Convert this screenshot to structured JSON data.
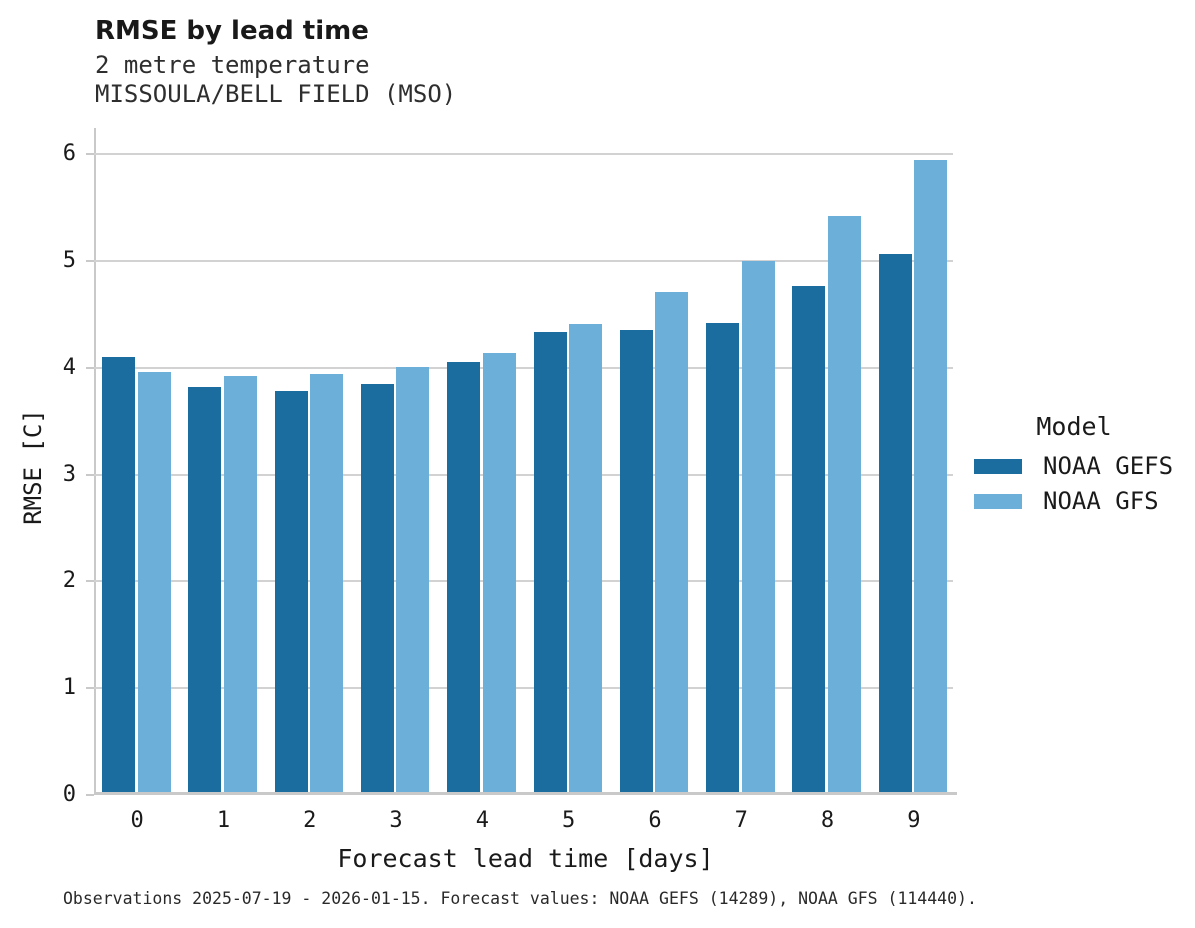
{
  "chart_data": {
    "type": "bar",
    "title": "RMSE by lead time",
    "subtitle": [
      "2 metre temperature",
      "MISSOULA/BELL FIELD (MSO)"
    ],
    "categories": [
      "0",
      "1",
      "2",
      "3",
      "4",
      "5",
      "6",
      "7",
      "8",
      "9"
    ],
    "series": [
      {
        "name": "NOAA GEFS",
        "color": "#1a6d9e",
        "values": [
          4.1,
          3.82,
          3.78,
          3.85,
          4.05,
          4.34,
          4.35,
          4.42,
          4.77,
          5.07
        ]
      },
      {
        "name": "NOAA GFS",
        "color": "#6cb0da",
        "values": [
          3.96,
          3.92,
          3.94,
          4.01,
          4.14,
          4.41,
          4.71,
          5.0,
          5.42,
          5.95
        ]
      }
    ],
    "xlabel": "Forecast lead time [days]",
    "ylabel": "RMSE [C]",
    "ylim": [
      0,
      6
    ],
    "yticks": [
      0,
      1,
      2,
      3,
      4,
      5,
      6
    ],
    "grid": true,
    "legend_title": "Model",
    "legend_position": "right",
    "caption": "Observations 2025-07-19 - 2026-01-15. Forecast values: NOAA GEFS (14289), NOAA GFS (114440)."
  }
}
